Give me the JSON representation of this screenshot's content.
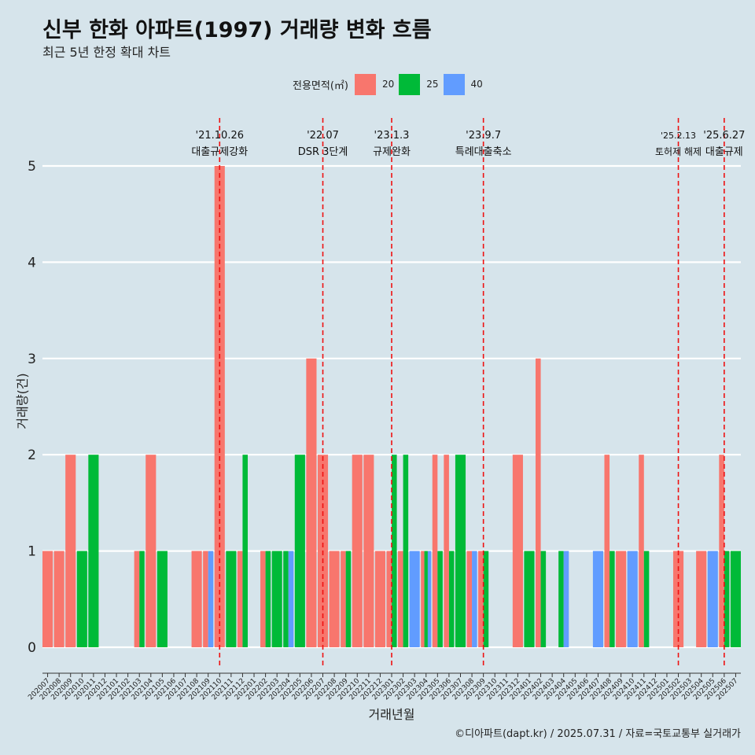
{
  "title": "신부 한화 아파트(1997) 거래량 변화 흐름",
  "subtitle": "최근 5년 한정 확대 차트",
  "caption": "©디아파트(dapt.kr) / 2025.07.31 / 자료=국토교통부 실거래가",
  "legend": {
    "title": "전용면적(㎡)",
    "items": [
      {
        "label": "20",
        "color": "#f8766d"
      },
      {
        "label": "25",
        "color": "#00ba38"
      },
      {
        "label": "40",
        "color": "#619cff"
      }
    ]
  },
  "chart_data": {
    "type": "bar",
    "xlabel": "거래년월",
    "ylabel": "거래량(건)",
    "ylim": [
      0,
      5
    ],
    "y_ticks": [
      0,
      1,
      2,
      3,
      4,
      5
    ],
    "grid": true,
    "categories": [
      "202007",
      "202008",
      "202009",
      "202010",
      "202011",
      "202012",
      "202101",
      "202102",
      "202103",
      "202104",
      "202105",
      "202106",
      "202107",
      "202108",
      "202109",
      "202110",
      "202111",
      "202112",
      "202201",
      "202202",
      "202203",
      "202204",
      "202205",
      "202206",
      "202207",
      "202208",
      "202209",
      "202210",
      "202211",
      "202212",
      "202301",
      "202302",
      "202303",
      "202304",
      "202305",
      "202306",
      "202307",
      "202308",
      "202309",
      "202310",
      "202311",
      "202312",
      "202401",
      "202402",
      "202403",
      "202404",
      "202405",
      "202406",
      "202407",
      "202408",
      "202409",
      "202410",
      "202411",
      "202412",
      "202501",
      "202502",
      "202503",
      "202504",
      "202505",
      "202506",
      "202507"
    ],
    "series": [
      {
        "name": "20",
        "values": [
          1,
          1,
          2,
          0,
          0,
          0,
          0,
          0,
          1,
          2,
          0,
          0,
          0,
          1,
          1,
          5,
          0,
          1,
          0,
          1,
          0,
          0,
          0,
          3,
          2,
          1,
          1,
          2,
          2,
          1,
          1,
          1,
          0,
          1,
          2,
          2,
          0,
          1,
          1,
          0,
          0,
          2,
          0,
          3,
          0,
          0,
          0,
          0,
          0,
          2,
          1,
          0,
          2,
          0,
          0,
          1,
          0,
          1,
          0,
          2,
          0
        ]
      },
      {
        "name": "25",
        "values": [
          0,
          0,
          0,
          1,
          2,
          0,
          0,
          0,
          1,
          0,
          1,
          0,
          0,
          0,
          0,
          0,
          1,
          2,
          0,
          1,
          1,
          1,
          2,
          0,
          0,
          0,
          1,
          0,
          0,
          0,
          2,
          2,
          0,
          1,
          1,
          1,
          2,
          0,
          1,
          0,
          0,
          0,
          1,
          1,
          0,
          1,
          0,
          0,
          0,
          1,
          0,
          0,
          1,
          0,
          0,
          0,
          0,
          0,
          0,
          1,
          1
        ]
      },
      {
        "name": "40",
        "values": [
          0,
          0,
          0,
          0,
          0,
          0,
          0,
          0,
          0,
          0,
          0,
          0,
          0,
          0,
          1,
          0,
          0,
          0,
          0,
          0,
          0,
          1,
          0,
          0,
          0,
          0,
          0,
          0,
          0,
          0,
          0,
          0,
          1,
          1,
          0,
          0,
          0,
          1,
          0,
          0,
          0,
          0,
          0,
          0,
          0,
          1,
          0,
          0,
          1,
          0,
          0,
          1,
          0,
          0,
          0,
          0,
          0,
          0,
          1,
          0,
          0
        ]
      }
    ],
    "annotations": [
      {
        "x": "202110",
        "date": "'21.10.26",
        "label": "대출규제강화"
      },
      {
        "x": "202207",
        "date": "'22.07",
        "label": "DSR 3단계"
      },
      {
        "x": "202301",
        "date": "'23.1.3",
        "label": "규제완화"
      },
      {
        "x": "202309",
        "date": "'23.9.7",
        "label": "특례대출축소"
      },
      {
        "x": "202502",
        "date": "'25.2.13",
        "label": "토허제 해제"
      },
      {
        "x": "202506",
        "date": "'25.6.27",
        "label": "대출규제"
      }
    ]
  }
}
